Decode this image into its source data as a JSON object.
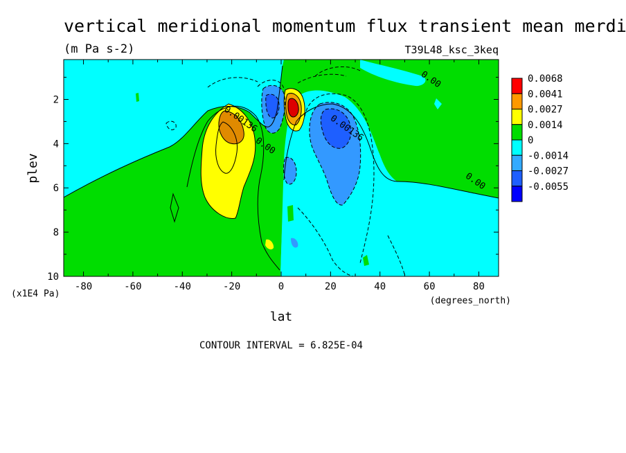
{
  "chart_data": {
    "type": "heatmap",
    "title": "vertical meridional momentum flux transient mean merdional",
    "units": "(m Pa s-2)",
    "dataset": "T39L48_ksc_3keq",
    "xlabel": "lat",
    "xunits": "(degrees_north)",
    "ylabel": "plev",
    "yunits": "(x1E4 Pa)",
    "footer": "CONTOUR INTERVAL = 6.825E-04",
    "xlim": [
      -88,
      88
    ],
    "ylim": [
      10,
      0.2
    ],
    "x_ticks": [
      -80,
      -60,
      -40,
      -20,
      0,
      20,
      40,
      60,
      80
    ],
    "x_tick_labels": [
      "-80",
      "-60",
      "-40",
      "-20",
      "0",
      "20",
      "40",
      "60",
      "80"
    ],
    "y_ticks": [
      2,
      4,
      6,
      8,
      10
    ],
    "y_tick_labels": [
      "2",
      "4",
      "6",
      "8",
      "10"
    ],
    "colorbar": {
      "labels": [
        "0.0068",
        "0.0041",
        "0.0027",
        "0.0014",
        "0",
        "-0.0014",
        "-0.0027",
        "-0.0055"
      ],
      "colors": [
        "#ff0000",
        "#ff9900",
        "#ffff00",
        "#00dd00",
        "#00ffff",
        "#33aaff",
        "#1e5fff",
        "#0000ff"
      ]
    },
    "fill_colors": {
      "level_p4": "#dd0000",
      "level_p3": "#e08a00",
      "level_p2": "#f5a300",
      "level_p1": "#ffff00",
      "level_0": "#00dd00",
      "level_n1": "#00ffff",
      "level_n2": "#3399ff",
      "level_n3": "#1e5fff",
      "level_n4": "#0000ee"
    },
    "contour_labels": [
      {
        "text": "0.00136",
        "lat": -17,
        "plev": 3.0
      },
      {
        "text": "0.00",
        "lat": -7,
        "plev": 4.2
      },
      {
        "text": "0.00",
        "lat": 60,
        "plev": 1.2
      },
      {
        "text": "0.00",
        "lat": 78,
        "plev": 5.8
      },
      {
        "text": "0.00136",
        "lat": 26,
        "plev": 3.4
      }
    ],
    "features": [
      {
        "name": "positive-max",
        "lat": 5,
        "plev": 2.3,
        "value": 0.0068
      },
      {
        "name": "negative-max",
        "lat": -4,
        "plev": 2.2,
        "value": -0.0055
      },
      {
        "name": "positive-lobe-south",
        "lat": -20,
        "plev": 3.5,
        "value": 0.0027
      },
      {
        "name": "negative-lobe-north",
        "lat": 22,
        "plev": 3.2,
        "value": -0.0027
      }
    ]
  }
}
